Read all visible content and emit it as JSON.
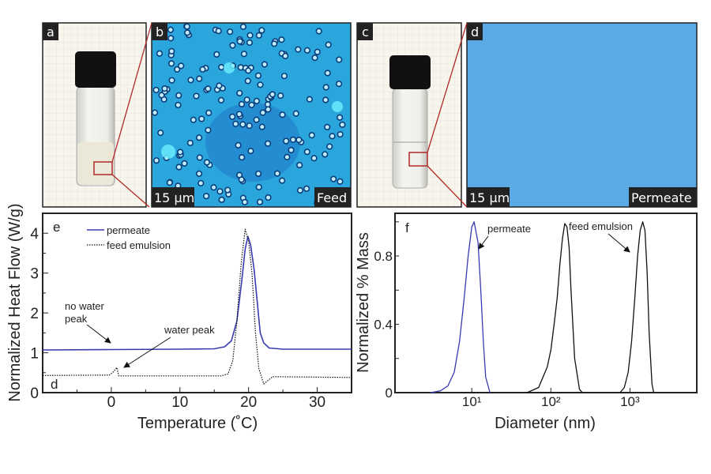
{
  "panels": {
    "a": {
      "letter": "a"
    },
    "b": {
      "letter": "b",
      "scale_bar": "15 µm",
      "caption": "Feed"
    },
    "c": {
      "letter": "c"
    },
    "d": {
      "letter": "d",
      "scale_bar": "15 µm",
      "caption": "Permeate"
    },
    "colors": {
      "microscope_feed": "#2aa6dc",
      "microscope_permeate": "#5aaae6",
      "zoom_box": "#b22a2a",
      "vial_cap": "#111111"
    }
  },
  "chart_data": [
    {
      "type": "line",
      "panel_letter": "e",
      "corner_letter": "d",
      "xlabel": "Temperature (˚C)",
      "ylabel": "Normalized Heat Flow (W/g)",
      "xlim": [
        -10,
        35
      ],
      "ylim": [
        0,
        4.5
      ],
      "x_ticks": [
        0,
        10,
        20,
        30
      ],
      "y_ticks": [
        0,
        1,
        2,
        3,
        4
      ],
      "grid": false,
      "legend_position": "top-left",
      "legend": [
        "permeate",
        "feed emulsion"
      ],
      "annotations": [
        {
          "text_lines": [
            "no water",
            "peak"
          ]
        },
        {
          "text_lines": [
            "water peak"
          ]
        }
      ],
      "series": [
        {
          "name": "permeate",
          "color": "#3a3ab0",
          "style": "solid",
          "points": [
            [
              -10,
              1.07
            ],
            [
              0,
              1.08
            ],
            [
              10,
              1.09
            ],
            [
              15,
              1.1
            ],
            [
              16.5,
              1.15
            ],
            [
              17.5,
              1.3
            ],
            [
              18.3,
              1.8
            ],
            [
              19,
              2.8
            ],
            [
              19.5,
              3.6
            ],
            [
              19.9,
              3.92
            ],
            [
              20.3,
              3.7
            ],
            [
              20.8,
              3.1
            ],
            [
              21.3,
              2.2
            ],
            [
              21.7,
              1.5
            ],
            [
              22.2,
              1.25
            ],
            [
              23,
              1.12
            ],
            [
              25,
              1.09
            ],
            [
              35,
              1.09
            ]
          ]
        },
        {
          "name": "feed emulsion",
          "color": "#111111",
          "style": "dotted",
          "points": [
            [
              -10,
              0.43
            ],
            [
              -0.3,
              0.44
            ],
            [
              0.3,
              0.52
            ],
            [
              0.8,
              0.63
            ],
            [
              1.1,
              0.42
            ],
            [
              10,
              0.42
            ],
            [
              16,
              0.42
            ],
            [
              17,
              0.47
            ],
            [
              17.7,
              0.8
            ],
            [
              18.3,
              1.8
            ],
            [
              18.9,
              3.2
            ],
            [
              19.5,
              4.1
            ],
            [
              20,
              3.8
            ],
            [
              20.5,
              3.0
            ],
            [
              21,
              1.5
            ],
            [
              21.5,
              0.6
            ],
            [
              22.2,
              0.22
            ],
            [
              22.8,
              0.3
            ],
            [
              23.5,
              0.4
            ],
            [
              35,
              0.38
            ]
          ]
        }
      ]
    },
    {
      "type": "line",
      "panel_letter": "f",
      "xlabel": "Diameter (nm)",
      "ylabel": "Normalized % Mass",
      "xscale": "log",
      "xlim": [
        1.07,
        7000
      ],
      "ylim": [
        0,
        1.05
      ],
      "x_ticks": [
        10,
        100,
        1000
      ],
      "x_tick_labels": [
        "10¹",
        "10²",
        "10³"
      ],
      "y_ticks": [
        0,
        0.4,
        0.8
      ],
      "y_tick_labels": [
        "0",
        "0.4",
        "0.8"
      ],
      "grid": false,
      "annotations": [
        {
          "text": "permeate"
        },
        {
          "text": "feed emulsion"
        }
      ],
      "series": [
        {
          "name": "permeate",
          "color": "#3a3ab0",
          "points": [
            [
              3,
              0
            ],
            [
              4,
              0.01
            ],
            [
              5,
              0.04
            ],
            [
              6,
              0.12
            ],
            [
              7,
              0.3
            ],
            [
              8,
              0.55
            ],
            [
              9,
              0.8
            ],
            [
              10,
              0.97
            ],
            [
              10.7,
              1.0
            ],
            [
              12,
              0.88
            ],
            [
              13,
              0.6
            ],
            [
              14,
              0.3
            ],
            [
              15,
              0.09
            ],
            [
              17,
              0
            ]
          ]
        },
        {
          "name": "feed emulsion",
          "color": "#111111",
          "points": [
            [
              50,
              0
            ],
            [
              70,
              0.03
            ],
            [
              90,
              0.15
            ],
            [
              100,
              0.25
            ],
            [
              110,
              0.4
            ],
            [
              120,
              0.55
            ],
            [
              130,
              0.75
            ],
            [
              140,
              0.9
            ],
            [
              150,
              0.99
            ],
            [
              160,
              0.97
            ],
            [
              170,
              0.85
            ],
            [
              180,
              0.6
            ],
            [
              200,
              0.2
            ],
            [
              230,
              0.02
            ],
            [
              250,
              0
            ]
          ]
        },
        {
          "name": "feed emulsion",
          "color": "#111111",
          "points": [
            [
              750,
              0
            ],
            [
              850,
              0.03
            ],
            [
              950,
              0.12
            ],
            [
              1050,
              0.3
            ],
            [
              1150,
              0.55
            ],
            [
              1250,
              0.8
            ],
            [
              1350,
              0.95
            ],
            [
              1450,
              1.0
            ],
            [
              1550,
              0.95
            ],
            [
              1650,
              0.7
            ],
            [
              1750,
              0.35
            ],
            [
              1900,
              0.05
            ],
            [
              2000,
              0
            ]
          ]
        }
      ]
    }
  ]
}
